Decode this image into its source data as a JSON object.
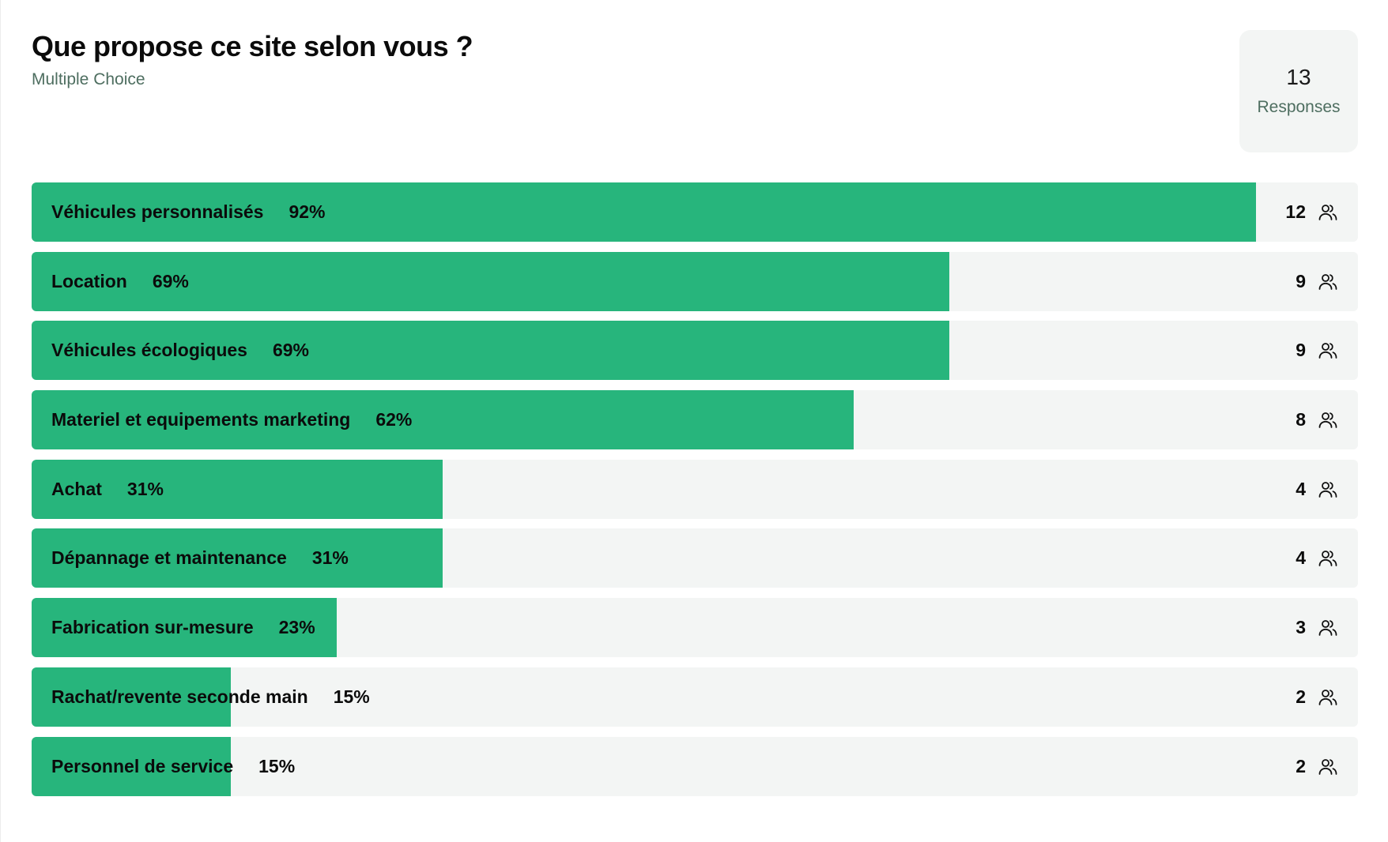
{
  "question": {
    "title": "Que propose ce site selon vous ?",
    "type": "Multiple Choice"
  },
  "responses": {
    "count": "13",
    "label": "Responses"
  },
  "colors": {
    "bar_fill": "#27b57c",
    "bar_track": "#f3f5f4",
    "subtle_text": "#4e6e60"
  },
  "options": [
    {
      "label": "Véhicules personnalisés",
      "percent_text": "92%",
      "percent": 92.3,
      "count": "12",
      "icon": "users-icon"
    },
    {
      "label": "Location",
      "percent_text": "69%",
      "percent": 69.2,
      "count": "9",
      "icon": "users-icon"
    },
    {
      "label": "Véhicules écologiques",
      "percent_text": "69%",
      "percent": 69.2,
      "count": "9",
      "icon": "users-icon"
    },
    {
      "label": "Materiel et equipements marketing",
      "percent_text": "62%",
      "percent": 62.0,
      "count": "8",
      "icon": "users-icon"
    },
    {
      "label": "Achat",
      "percent_text": "31%",
      "percent": 31.0,
      "count": "4",
      "icon": "users-icon"
    },
    {
      "label": "Dépannage et maintenance",
      "percent_text": "31%",
      "percent": 31.0,
      "count": "4",
      "icon": "users-icon"
    },
    {
      "label": "Fabrication sur-mesure",
      "percent_text": "23%",
      "percent": 23.0,
      "count": "3",
      "icon": "users-icon"
    },
    {
      "label": "Rachat/revente seconde main",
      "percent_text": "15%",
      "percent": 15.0,
      "count": "2",
      "icon": "users-icon"
    },
    {
      "label": "Personnel de service",
      "percent_text": "15%",
      "percent": 15.0,
      "count": "2",
      "icon": "users-icon"
    }
  ]
}
